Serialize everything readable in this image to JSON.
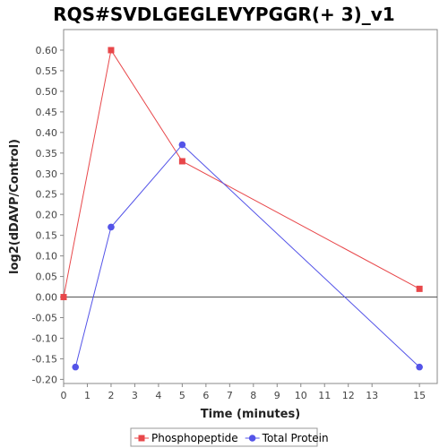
{
  "chart_data": {
    "type": "line",
    "title": "RQS#SVDLGEGLEVYPGGR(+ 3)_v1",
    "xlabel": "Time (minutes)",
    "ylabel": "log2(dDAVP/Control)",
    "categories": [
      "0",
      "1",
      "2",
      "3",
      "4",
      "5",
      "6",
      "7",
      "8",
      "9",
      "10",
      "11",
      "12",
      "13",
      "15"
    ],
    "ylim": [
      -0.21,
      0.65
    ],
    "yticks": [
      "0.60",
      "0.55",
      "0.50",
      "0.45",
      "0.40",
      "0.35",
      "0.30",
      "0.25",
      "0.20",
      "0.15",
      "0.10",
      "0.05",
      "0.00",
      "-0.05",
      "-0.10",
      "-0.15",
      "-0.20"
    ],
    "zero_line": true,
    "grid": false,
    "legend_position": "bottom",
    "series": [
      {
        "name": "Phosphopeptide",
        "color": "#e8474a",
        "marker": "square",
        "x": [
          0,
          2,
          5,
          15
        ],
        "y": [
          0.0,
          0.6,
          0.33,
          0.02
        ]
      },
      {
        "name": "Total Protein",
        "color": "#5454e8",
        "marker": "circle",
        "x": [
          0.5,
          2,
          5,
          15
        ],
        "y": [
          -0.17,
          0.17,
          0.37,
          -0.17
        ]
      }
    ]
  }
}
